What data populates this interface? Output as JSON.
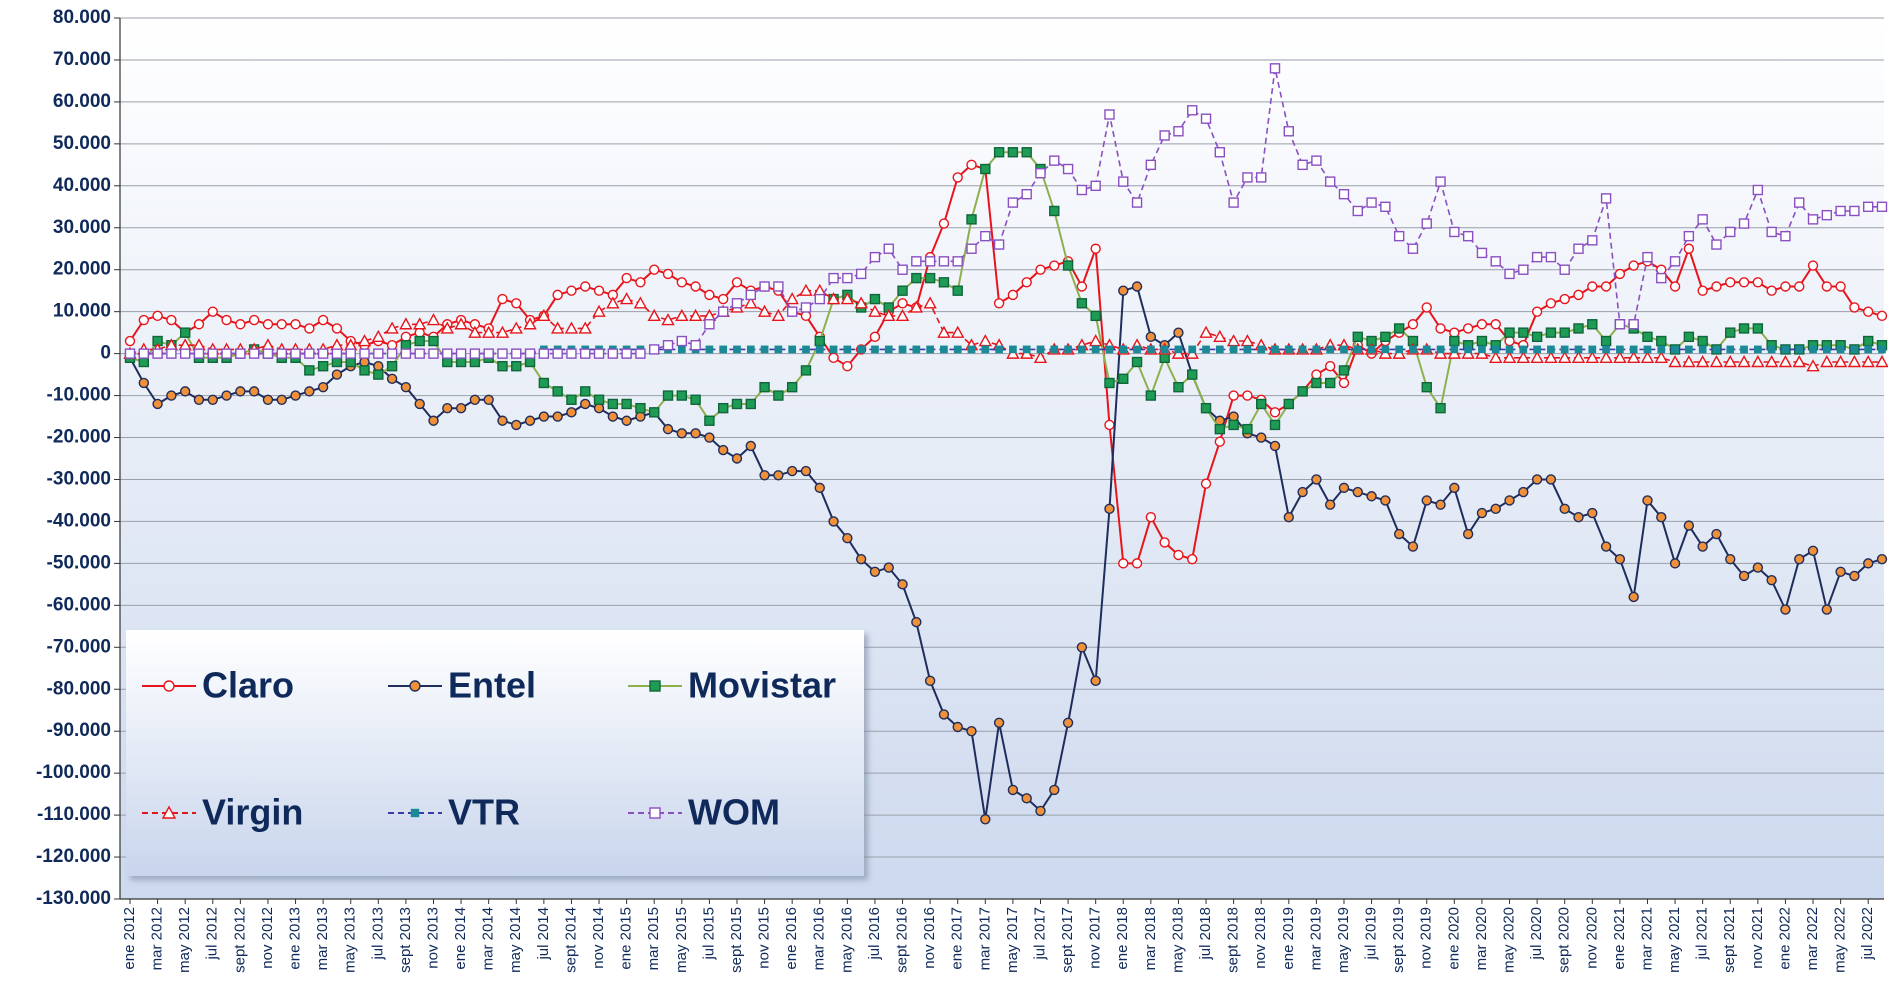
{
  "chart_data": {
    "type": "line",
    "categories": [
      "ene 2012",
      null,
      "mar 2012",
      null,
      "may 2012",
      null,
      "jul 2012",
      null,
      "sept 2012",
      null,
      "nov 2012",
      null,
      "ene 2013",
      null,
      "mar 2013",
      null,
      "may 2013",
      null,
      "jul 2013",
      null,
      "sept 2013",
      null,
      "nov 2013",
      null,
      "ene 2014",
      null,
      "mar 2014",
      null,
      "may 2014",
      null,
      "jul 2014",
      null,
      "sept 2014",
      null,
      "nov 2014",
      null,
      "ene 2015",
      null,
      "mar 2015",
      null,
      "may 2015",
      null,
      "jul 2015",
      null,
      "sept 2015",
      null,
      "nov 2015",
      null,
      "ene 2016",
      null,
      "mar 2016",
      null,
      "may 2016",
      null,
      "jul 2016",
      null,
      "sept 2016",
      null,
      "nov 2016",
      null,
      "ene 2017",
      null,
      "mar 2017",
      null,
      "may 2017",
      null,
      "jul 2017",
      null,
      "sept 2017",
      null,
      "nov 2017",
      null,
      "ene 2018",
      null,
      "mar 2018",
      null,
      "may 2018",
      null,
      "jul 2018",
      null,
      "sept 2018",
      null,
      "nov 2018",
      null,
      "ene 2019",
      null,
      "mar 2019",
      null,
      "may 2019",
      null,
      "jul 2019",
      null,
      "sept 2019",
      null,
      "nov 2019",
      null,
      "ene 2020",
      null,
      "mar 2020",
      null,
      "may 2020",
      null,
      "jul 2020",
      null,
      "sept 2020",
      null,
      "nov 2020",
      null,
      "ene 2021",
      null,
      "mar 2021",
      null,
      "may 2021",
      null,
      "jul 2021",
      null,
      "sept 2021",
      null,
      "nov 2021",
      null,
      "ene 2022",
      null,
      "mar 2022",
      null,
      "may 2022",
      null,
      "jul 2022",
      null
    ],
    "ylim": [
      -130000,
      80000
    ],
    "yticks": [
      {
        "value": 80000,
        "label": "80.000"
      },
      {
        "value": 70000,
        "label": "70.000"
      },
      {
        "value": 60000,
        "label": "60.000"
      },
      {
        "value": 50000,
        "label": "50.000"
      },
      {
        "value": 40000,
        "label": "40.000"
      },
      {
        "value": 30000,
        "label": "30.000"
      },
      {
        "value": 20000,
        "label": "20.000"
      },
      {
        "value": 10000,
        "label": "10.000"
      },
      0,
      {
        "value": -10000,
        "label": "-10.000"
      },
      {
        "value": -20000,
        "label": "-20.000"
      },
      {
        "value": -30000,
        "label": "-30.000"
      },
      {
        "value": -40000,
        "label": "-40.000"
      },
      {
        "value": -50000,
        "label": "-50.000"
      },
      {
        "value": -60000,
        "label": "-60.000"
      },
      {
        "value": -70000,
        "label": "-70.000"
      },
      {
        "value": -80000,
        "label": "-80.000"
      },
      {
        "value": -90000,
        "label": "-90.000"
      },
      {
        "value": -100000,
        "label": "-100.000"
      },
      {
        "value": -110000,
        "label": "-110.000"
      },
      {
        "value": -120000,
        "label": "-120.000"
      },
      {
        "value": -130000,
        "label": "-130.000"
      }
    ],
    "grid": true,
    "legend": "lower left",
    "series": [
      {
        "name": "Claro",
        "color": "#e8141b",
        "marker": "circle",
        "marker_color": "#ffffff",
        "dashed": false,
        "values": [
          3000,
          8000,
          9000,
          8000,
          5000,
          7000,
          10000,
          8000,
          7000,
          8000,
          7000,
          7000,
          7000,
          6000,
          8000,
          6000,
          3000,
          2000,
          3000,
          2000,
          4000,
          5000,
          4000,
          7000,
          8000,
          7000,
          6000,
          13000,
          12000,
          8000,
          9000,
          14000,
          15000,
          16000,
          15000,
          14000,
          18000,
          17000,
          20000,
          19000,
          17000,
          16000,
          14000,
          13000,
          17000,
          15000,
          16000,
          15000,
          10000,
          9000,
          4000,
          -1000,
          -3000,
          1000,
          4000,
          10000,
          12000,
          11000,
          23000,
          31000,
          42000,
          45000,
          44000,
          12000,
          14000,
          17000,
          20000,
          21000,
          22000,
          16000,
          25000,
          -17000,
          -50000,
          -50000,
          -39000,
          -45000,
          -48000,
          -49000,
          -31000,
          -21000,
          -10000,
          -10000,
          -11000,
          -14000,
          -12000,
          -9000,
          -5000,
          -3000,
          -7000,
          2000,
          0,
          3000,
          5000,
          7000,
          11000,
          6000,
          5000,
          6000,
          7000,
          7000,
          3000,
          2000,
          10000,
          12000,
          13000,
          14000,
          16000,
          16000,
          19000,
          21000,
          22000,
          20000,
          16000,
          25000,
          15000,
          16000,
          17000,
          17000,
          17000,
          15000,
          16000,
          16000,
          21000,
          16000,
          16000,
          11000,
          10000,
          9000
        ]
      },
      {
        "name": "Entel",
        "color": "#1f2d5c",
        "marker": "circle",
        "marker_color": "#f0913a",
        "dashed": false,
        "values": [
          -1000,
          -7000,
          -12000,
          -10000,
          -9000,
          -11000,
          -11000,
          -10000,
          -9000,
          -9000,
          -11000,
          -11000,
          -10000,
          -9000,
          -8000,
          -5000,
          -3000,
          -2000,
          -3000,
          -6000,
          -8000,
          -12000,
          -16000,
          -13000,
          -13000,
          -11000,
          -11000,
          -16000,
          -17000,
          -16000,
          -15000,
          -15000,
          -14000,
          -12000,
          -13000,
          -15000,
          -16000,
          -15000,
          -14000,
          -18000,
          -19000,
          -19000,
          -20000,
          -23000,
          -25000,
          -22000,
          -29000,
          -29000,
          -28000,
          -28000,
          -32000,
          -40000,
          -44000,
          -49000,
          -52000,
          -51000,
          -55000,
          -64000,
          -78000,
          -86000,
          -89000,
          -90000,
          -111000,
          -88000,
          -104000,
          -106000,
          -109000,
          -104000,
          -88000,
          -70000,
          -78000,
          -37000,
          15000,
          16000,
          4000,
          2000,
          5000,
          -5000,
          -13000,
          -16000,
          -15000,
          -19000,
          -20000,
          -22000,
          -39000,
          -33000,
          -30000,
          -36000,
          -32000,
          -33000,
          -34000,
          -35000,
          -43000,
          -46000,
          -35000,
          -36000,
          -32000,
          -43000,
          -38000,
          -37000,
          -35000,
          -33000,
          -30000,
          -30000,
          -37000,
          -39000,
          -38000,
          -46000,
          -49000,
          -58000,
          -35000,
          -39000,
          -50000,
          -41000,
          -46000,
          -43000,
          -49000,
          -53000,
          -51000,
          -54000,
          -61000,
          -49000,
          -47000,
          -61000,
          -52000,
          -53000,
          -50000,
          -49000
        ]
      },
      {
        "name": "Movistar",
        "color": "#8db04f",
        "marker": "square",
        "marker_color": "#1e9c56",
        "dashed": false,
        "values": [
          -1000,
          -2000,
          3000,
          2000,
          5000,
          -1000,
          -1000,
          -1000,
          0,
          1000,
          0,
          -1000,
          -1000,
          -4000,
          -3000,
          -2000,
          -2000,
          -4000,
          -5000,
          -3000,
          2000,
          3000,
          3000,
          -2000,
          -2000,
          -2000,
          -1000,
          -3000,
          -3000,
          -2000,
          -7000,
          -9000,
          -11000,
          -9000,
          -11000,
          -12000,
          -12000,
          -13000,
          -14000,
          -10000,
          -10000,
          -11000,
          -16000,
          -13000,
          -12000,
          -12000,
          -8000,
          -10000,
          -8000,
          -4000,
          3000,
          13000,
          14000,
          11000,
          13000,
          11000,
          15000,
          18000,
          18000,
          17000,
          15000,
          32000,
          44000,
          48000,
          48000,
          48000,
          44000,
          34000,
          21000,
          12000,
          9000,
          -7000,
          -6000,
          -2000,
          -10000,
          -1000,
          -8000,
          -5000,
          -13000,
          -18000,
          -17000,
          -18000,
          -12000,
          -17000,
          -12000,
          -9000,
          -7000,
          -7000,
          -4000,
          4000,
          3000,
          4000,
          6000,
          3000,
          -8000,
          -13000,
          3000,
          2000,
          3000,
          2000,
          5000,
          5000,
          4000,
          5000,
          5000,
          6000,
          7000,
          3000,
          7000,
          6000,
          4000,
          3000,
          1000,
          4000,
          3000,
          1000,
          5000,
          6000,
          6000,
          2000,
          1000,
          1000,
          2000,
          2000,
          2000,
          1000,
          3000,
          2000
        ]
      },
      {
        "name": "Virgin",
        "color": "#e8141b",
        "marker": "triangle",
        "marker_color": "#ffffff",
        "dashed": true,
        "values": [
          0,
          1000,
          1000,
          2000,
          2000,
          2000,
          1000,
          1000,
          1000,
          1000,
          2000,
          1000,
          1000,
          1000,
          1000,
          2000,
          2000,
          3000,
          4000,
          6000,
          7000,
          7000,
          8000,
          6000,
          7000,
          5000,
          5000,
          5000,
          6000,
          7000,
          9000,
          6000,
          6000,
          6000,
          10000,
          12000,
          13000,
          12000,
          9000,
          8000,
          9000,
          9000,
          9000,
          10000,
          11000,
          12000,
          10000,
          9000,
          13000,
          15000,
          15000,
          13000,
          13000,
          12000,
          10000,
          9000,
          9000,
          11000,
          12000,
          5000,
          5000,
          2000,
          3000,
          2000,
          0,
          0,
          -1000,
          1000,
          1000,
          2000,
          3000,
          2000,
          1000,
          2000,
          1000,
          1000,
          0,
          0,
          5000,
          4000,
          3000,
          3000,
          2000,
          1000,
          1000,
          1000,
          1000,
          2000,
          2000,
          1000,
          1000,
          0,
          0,
          1000,
          1000,
          0,
          0,
          0,
          0,
          -1000,
          -1000,
          -1000,
          -1000,
          -1000,
          -1000,
          -1000,
          -1000,
          -1000,
          -1000,
          -1000,
          -1000,
          -1000,
          -2000,
          -2000,
          -2000,
          -2000,
          -2000,
          -2000,
          -2000,
          -2000,
          -2000,
          -2000,
          -3000,
          -2000,
          -2000,
          -2000,
          -2000,
          -2000
        ]
      },
      {
        "name": "VTR",
        "color": "#3a3aa8",
        "marker": "small-square",
        "marker_color": "#1a8a96",
        "dashed": true,
        "values": [
          0,
          0,
          0,
          0,
          0,
          0,
          0,
          0,
          0,
          0,
          0,
          0,
          0,
          0,
          0,
          0,
          0,
          0,
          0,
          0,
          0,
          0,
          0,
          0,
          0,
          0,
          0,
          0,
          0,
          0,
          1000,
          1000,
          1000,
          1000,
          1000,
          1000,
          1000,
          1000,
          1000,
          1000,
          1000,
          1000,
          1000,
          1000,
          1000,
          1000,
          1000,
          1000,
          1000,
          1000,
          1000,
          1000,
          1000,
          1000,
          1000,
          1000,
          1000,
          1000,
          1000,
          1000,
          1000,
          1000,
          1000,
          1000,
          1000,
          1000,
          1000,
          1000,
          1000,
          1000,
          1000,
          1000,
          1000,
          1000,
          1000,
          1000,
          1000,
          1000,
          1000,
          1000,
          1000,
          1000,
          1000,
          1000,
          1000,
          1000,
          1000,
          1000,
          1000,
          1000,
          1000,
          1000,
          1000,
          1000,
          1000,
          1000,
          1000,
          1000,
          1000,
          1000,
          1000,
          1000,
          1000,
          1000,
          1000,
          1000,
          1000,
          1000,
          1000,
          1000,
          1000,
          1000,
          1000,
          1000,
          1000,
          1000,
          1000,
          1000,
          1000,
          1000,
          1000,
          1000,
          1000,
          1000,
          1000,
          1000,
          1000,
          1000
        ]
      },
      {
        "name": "WOM",
        "color": "#8a4fc2",
        "marker": "square",
        "marker_color": "#ffffff",
        "dashed": true,
        "values": [
          0,
          0,
          0,
          0,
          0,
          0,
          0,
          0,
          0,
          0,
          0,
          0,
          0,
          0,
          0,
          0,
          0,
          0,
          0,
          0,
          0,
          0,
          0,
          0,
          0,
          0,
          0,
          0,
          0,
          0,
          0,
          0,
          0,
          0,
          0,
          0,
          0,
          0,
          1000,
          2000,
          3000,
          2000,
          7000,
          10000,
          12000,
          14000,
          16000,
          16000,
          10000,
          11000,
          13000,
          18000,
          18000,
          19000,
          23000,
          25000,
          20000,
          22000,
          22000,
          22000,
          22000,
          25000,
          28000,
          26000,
          36000,
          38000,
          43000,
          46000,
          44000,
          39000,
          40000,
          57000,
          41000,
          36000,
          45000,
          52000,
          53000,
          58000,
          56000,
          48000,
          36000,
          42000,
          42000,
          68000,
          53000,
          45000,
          46000,
          41000,
          38000,
          34000,
          36000,
          35000,
          28000,
          25000,
          31000,
          41000,
          29000,
          28000,
          24000,
          22000,
          19000,
          20000,
          23000,
          23000,
          20000,
          25000,
          27000,
          37000,
          7000,
          7000,
          23000,
          18000,
          22000,
          28000,
          32000,
          26000,
          29000,
          31000,
          39000,
          29000,
          28000,
          36000,
          32000,
          33000,
          34000,
          34000,
          35000,
          35000
        ]
      }
    ]
  }
}
